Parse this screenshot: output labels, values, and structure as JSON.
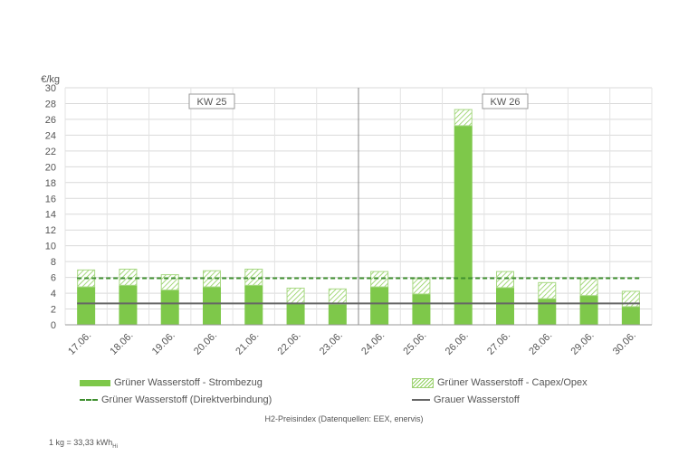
{
  "chart_data": {
    "type": "bar",
    "title": "",
    "xlabel": "",
    "ylabel": "€/kg",
    "ylim": [
      0,
      30
    ],
    "yticks": [
      0,
      2,
      4,
      6,
      8,
      10,
      12,
      14,
      16,
      18,
      20,
      22,
      24,
      26,
      28,
      30
    ],
    "grid": true,
    "categories": [
      "17.06.",
      "18.06.",
      "19.06.",
      "20.06.",
      "21.06.",
      "22.06.",
      "23.06.",
      "24.06.",
      "25.06.",
      "26.06.",
      "27.06.",
      "28.06.",
      "29.06.",
      "30.06."
    ],
    "series": [
      {
        "name": "Grüner Wasserstoff - Strombezug",
        "kind": "stacked-bar",
        "color": "#7ec84a",
        "values": [
          4.8,
          5.0,
          4.4,
          4.8,
          5.0,
          2.7,
          2.6,
          4.8,
          3.9,
          25.2,
          4.7,
          3.3,
          3.7,
          2.3
        ]
      },
      {
        "name": "Grüner Wasserstoff - Capex/Opex",
        "kind": "stacked-bar-hatched",
        "color": "#8fcf5c",
        "values": [
          2.2,
          2.1,
          2.0,
          2.1,
          2.1,
          2.0,
          2.0,
          2.0,
          2.0,
          2.1,
          2.1,
          2.1,
          2.2,
          2.0
        ]
      },
      {
        "name": "Grüner Wasserstoff (Direktverbindung)",
        "kind": "dashed-line",
        "color": "#3f8f2f",
        "values": [
          5.9,
          5.9,
          5.9,
          5.9,
          5.9,
          5.9,
          5.9,
          5.9,
          5.9,
          5.9,
          5.9,
          5.9,
          5.9,
          5.9
        ]
      },
      {
        "name": "Grauer Wasserstoff",
        "kind": "line",
        "color": "#666666",
        "values": [
          2.7,
          2.7,
          2.7,
          2.7,
          2.7,
          2.7,
          2.7,
          2.7,
          2.7,
          2.7,
          2.7,
          2.7,
          2.7,
          2.7
        ]
      }
    ],
    "annotations": [
      {
        "text": "KW 25",
        "categories_span": [
          0,
          6
        ]
      },
      {
        "text": "KW 26",
        "categories_span": [
          7,
          13
        ]
      }
    ],
    "week_divider_after_category": 6,
    "legend_position": "bottom"
  },
  "legend": {
    "strombezug": "Grüner Wasserstoff - Strombezug",
    "capex": "Grüner Wasserstoff - Capex/Opex",
    "direkt": "Grüner Wasserstoff (Direktverbindung)",
    "grau": "Grauer Wasserstoff"
  },
  "footer": {
    "title": "H2-Preisindex (Datenquellen: EEX, enervis)",
    "note": "1 kg = 33,33 kWh",
    "note_sub": "Hi"
  }
}
